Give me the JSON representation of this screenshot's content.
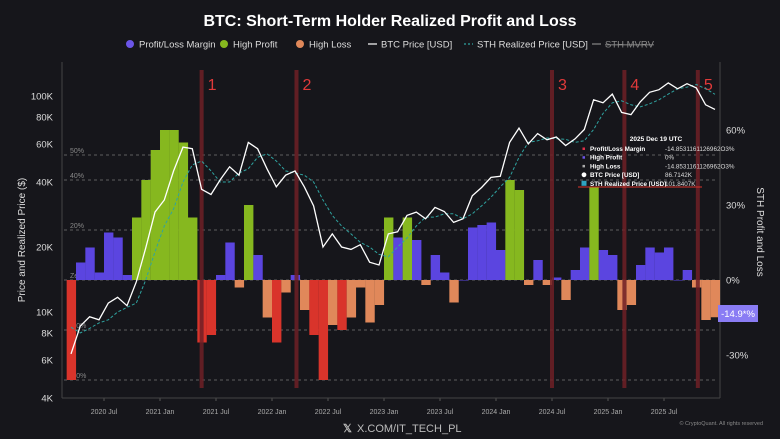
{
  "chart_data": {
    "type": "bar+line",
    "title": "BTC: Short-Term Holder Realized Profit and Loss",
    "legend": {
      "placement": "top",
      "items": [
        {
          "label": "Profit/Loss Margin",
          "color": "#6b55e8",
          "kind": "dot"
        },
        {
          "label": "High Profit",
          "color": "#86b81f",
          "kind": "dot"
        },
        {
          "label": "High Loss",
          "color": "#e0885a",
          "kind": "dot"
        },
        {
          "label": "BTC Price [USD]",
          "color": "#ffffff",
          "kind": "line"
        },
        {
          "label": "STH Realized Price [USD]",
          "color": "#2fa3a0",
          "kind": "dash"
        },
        {
          "label": "STH MVRV",
          "color": "#888888",
          "kind": "line-disabled"
        }
      ]
    },
    "ylabel_left": "Price and Realized Price ($)",
    "ylabel_right": "STH Profit and Loss",
    "left_axis": {
      "scale": "log",
      "range": [
        4000,
        150000
      ],
      "ticks": [
        {
          "v": 4000,
          "label": "4K"
        },
        {
          "v": 6000,
          "label": "6K"
        },
        {
          "v": 8000,
          "label": "8K"
        },
        {
          "v": 10000,
          "label": "10K"
        },
        {
          "v": 20000,
          "label": "20K"
        },
        {
          "v": 40000,
          "label": "40K"
        },
        {
          "v": 60000,
          "label": "60K"
        },
        {
          "v": 80000,
          "label": "80K"
        },
        {
          "v": 100000,
          "label": "100K"
        }
      ]
    },
    "right_axis": {
      "scale": "linear",
      "ticks": [
        {
          "v": 60,
          "label": "60%"
        },
        {
          "v": 30,
          "label": "30%"
        },
        {
          "v": 0,
          "label": "0%"
        },
        {
          "v": -30,
          "label": "-30%"
        }
      ]
    },
    "margin_gridlines": [
      {
        "v": 50,
        "label": "50%"
      },
      {
        "v": 40,
        "label": "40%"
      },
      {
        "v": 20,
        "label": "20%"
      },
      {
        "v": 0,
        "label": "Zero"
      },
      {
        "v": -20,
        "label": "-20%"
      },
      {
        "v": -40,
        "label": "-40%"
      }
    ],
    "x_ticks": [
      "2020 Jul",
      "2021 Jan",
      "2021 Jul",
      "2022 Jan",
      "2022 Jul",
      "2023 Jan",
      "2023 Jul",
      "2024 Jan",
      "2024 Jul",
      "2025 Jan",
      "2025 Jul"
    ],
    "x_tick_dates": [
      "2020-07",
      "2021-01",
      "2021-07",
      "2022-01",
      "2022-07",
      "2023-01",
      "2023-07",
      "2024-01",
      "2024-07",
      "2025-01",
      "2025-07"
    ],
    "dates": [
      "2020-03",
      "2020-04",
      "2020-05",
      "2020-06",
      "2020-07",
      "2020-08",
      "2020-09",
      "2020-10",
      "2020-11",
      "2020-12",
      "2021-01",
      "2021-02",
      "2021-03",
      "2021-04",
      "2021-05",
      "2021-06",
      "2021-07",
      "2021-08",
      "2021-09",
      "2021-10",
      "2021-11",
      "2021-12",
      "2022-01",
      "2022-02",
      "2022-03",
      "2022-04",
      "2022-05",
      "2022-06",
      "2022-07",
      "2022-08",
      "2022-09",
      "2022-10",
      "2022-11",
      "2022-12",
      "2023-01",
      "2023-02",
      "2023-03",
      "2023-04",
      "2023-05",
      "2023-06",
      "2023-07",
      "2023-08",
      "2023-09",
      "2023-10",
      "2023-11",
      "2023-12",
      "2024-01",
      "2024-02",
      "2024-03",
      "2024-04",
      "2024-05",
      "2024-06",
      "2024-07",
      "2024-08",
      "2024-09",
      "2024-10",
      "2024-11",
      "2024-12",
      "2025-01",
      "2025-02",
      "2025-03",
      "2025-04",
      "2025-05",
      "2025-06",
      "2025-07",
      "2025-08",
      "2025-09",
      "2025-10",
      "2025-11",
      "2025-12"
    ],
    "series": [
      {
        "name": "BTC Price [USD]",
        "values": [
          6400,
          8600,
          9500,
          9200,
          11000,
          11700,
          10700,
          13800,
          19700,
          29000,
          33000,
          45000,
          58000,
          57000,
          37000,
          35000,
          41000,
          47000,
          43000,
          61000,
          57000,
          46000,
          38000,
          43000,
          45000,
          38000,
          31000,
          20000,
          23000,
          20000,
          19500,
          20500,
          17000,
          16500,
          23000,
          23500,
          28000,
          29000,
          27000,
          30500,
          29200,
          26000,
          27000,
          34500,
          37700,
          42000,
          42500,
          61000,
          71000,
          60000,
          67000,
          62700,
          64600,
          59000,
          63300,
          70000,
          96000,
          93000,
          102000,
          84000,
          82000,
          94000,
          104000,
          107000,
          115000,
          108000,
          114000,
          109000,
          91000,
          86714
        ]
      },
      {
        "name": "STH Realized Price [USD]",
        "values": [
          8500,
          8000,
          8400,
          8900,
          9200,
          10000,
          10500,
          11000,
          14000,
          19000,
          25000,
          30000,
          40000,
          48000,
          50000,
          45000,
          40000,
          40000,
          44000,
          46000,
          52000,
          54000,
          50000,
          45000,
          44000,
          43000,
          40000,
          33000,
          28000,
          25000,
          23000,
          21000,
          20000,
          18500,
          18000,
          20000,
          22000,
          25000,
          27500,
          27500,
          28500,
          28500,
          27000,
          28500,
          31000,
          34000,
          38000,
          42000,
          52000,
          61000,
          62000,
          64000,
          63500,
          63000,
          61000,
          62000,
          70000,
          83000,
          93000,
          95000,
          91000,
          89000,
          92000,
          96000,
          102000,
          108000,
          110000,
          113000,
          108000,
          101841
        ]
      },
      {
        "name": "Profit/Loss Margin",
        "unit": "%",
        "values": [
          -40,
          7,
          13,
          3,
          19,
          17,
          2,
          25,
          40,
          52,
          60,
          60,
          55,
          25,
          -25,
          -22,
          2,
          15,
          -3,
          30,
          10,
          -15,
          -25,
          -5,
          2,
          -12,
          -22,
          -40,
          -18,
          -20,
          -15,
          -3,
          -17,
          -10,
          25,
          17,
          25,
          16,
          -2,
          10,
          3,
          -9,
          0,
          21,
          22,
          23,
          12,
          40,
          36,
          -2,
          8,
          -2,
          1,
          -8,
          4,
          13,
          37,
          12,
          10,
          -12,
          -10,
          6,
          13,
          11,
          13,
          0,
          4,
          -3,
          -16,
          -14.9
        ]
      }
    ],
    "events": [
      {
        "label": "1",
        "date": "2021-05-15"
      },
      {
        "label": "2",
        "date": "2022-03-20"
      },
      {
        "label": "3",
        "date": "2024-07-01"
      },
      {
        "label": "4",
        "date": "2025-02-24"
      },
      {
        "label": "5",
        "date": "2025-10-20"
      }
    ],
    "current_badge": "-14.9*%",
    "tooltip": {
      "date": "2025 Dec 19 UTC",
      "rows": [
        {
          "label": "Profit/Loss Margin",
          "value": "-14.8531161126962O3%",
          "color": "#e0304a"
        },
        {
          "label": "High Profit",
          "value": "0%",
          "color": "#6b55e8"
        },
        {
          "label": "High Loss",
          "value": "-14.8531161126962O3%",
          "color": "#aaaaaa"
        },
        {
          "label": "BTC Price [USD]",
          "value": "86.7142K",
          "color": "#ffffff"
        },
        {
          "label": "STH Realized Price [USD]",
          "value": "101.8407K",
          "color": "#2fa3c0"
        }
      ]
    }
  },
  "watermark": "X.COM/IT_TECH_PL",
  "copyright": "© CryptoQuant. All rights reserved"
}
